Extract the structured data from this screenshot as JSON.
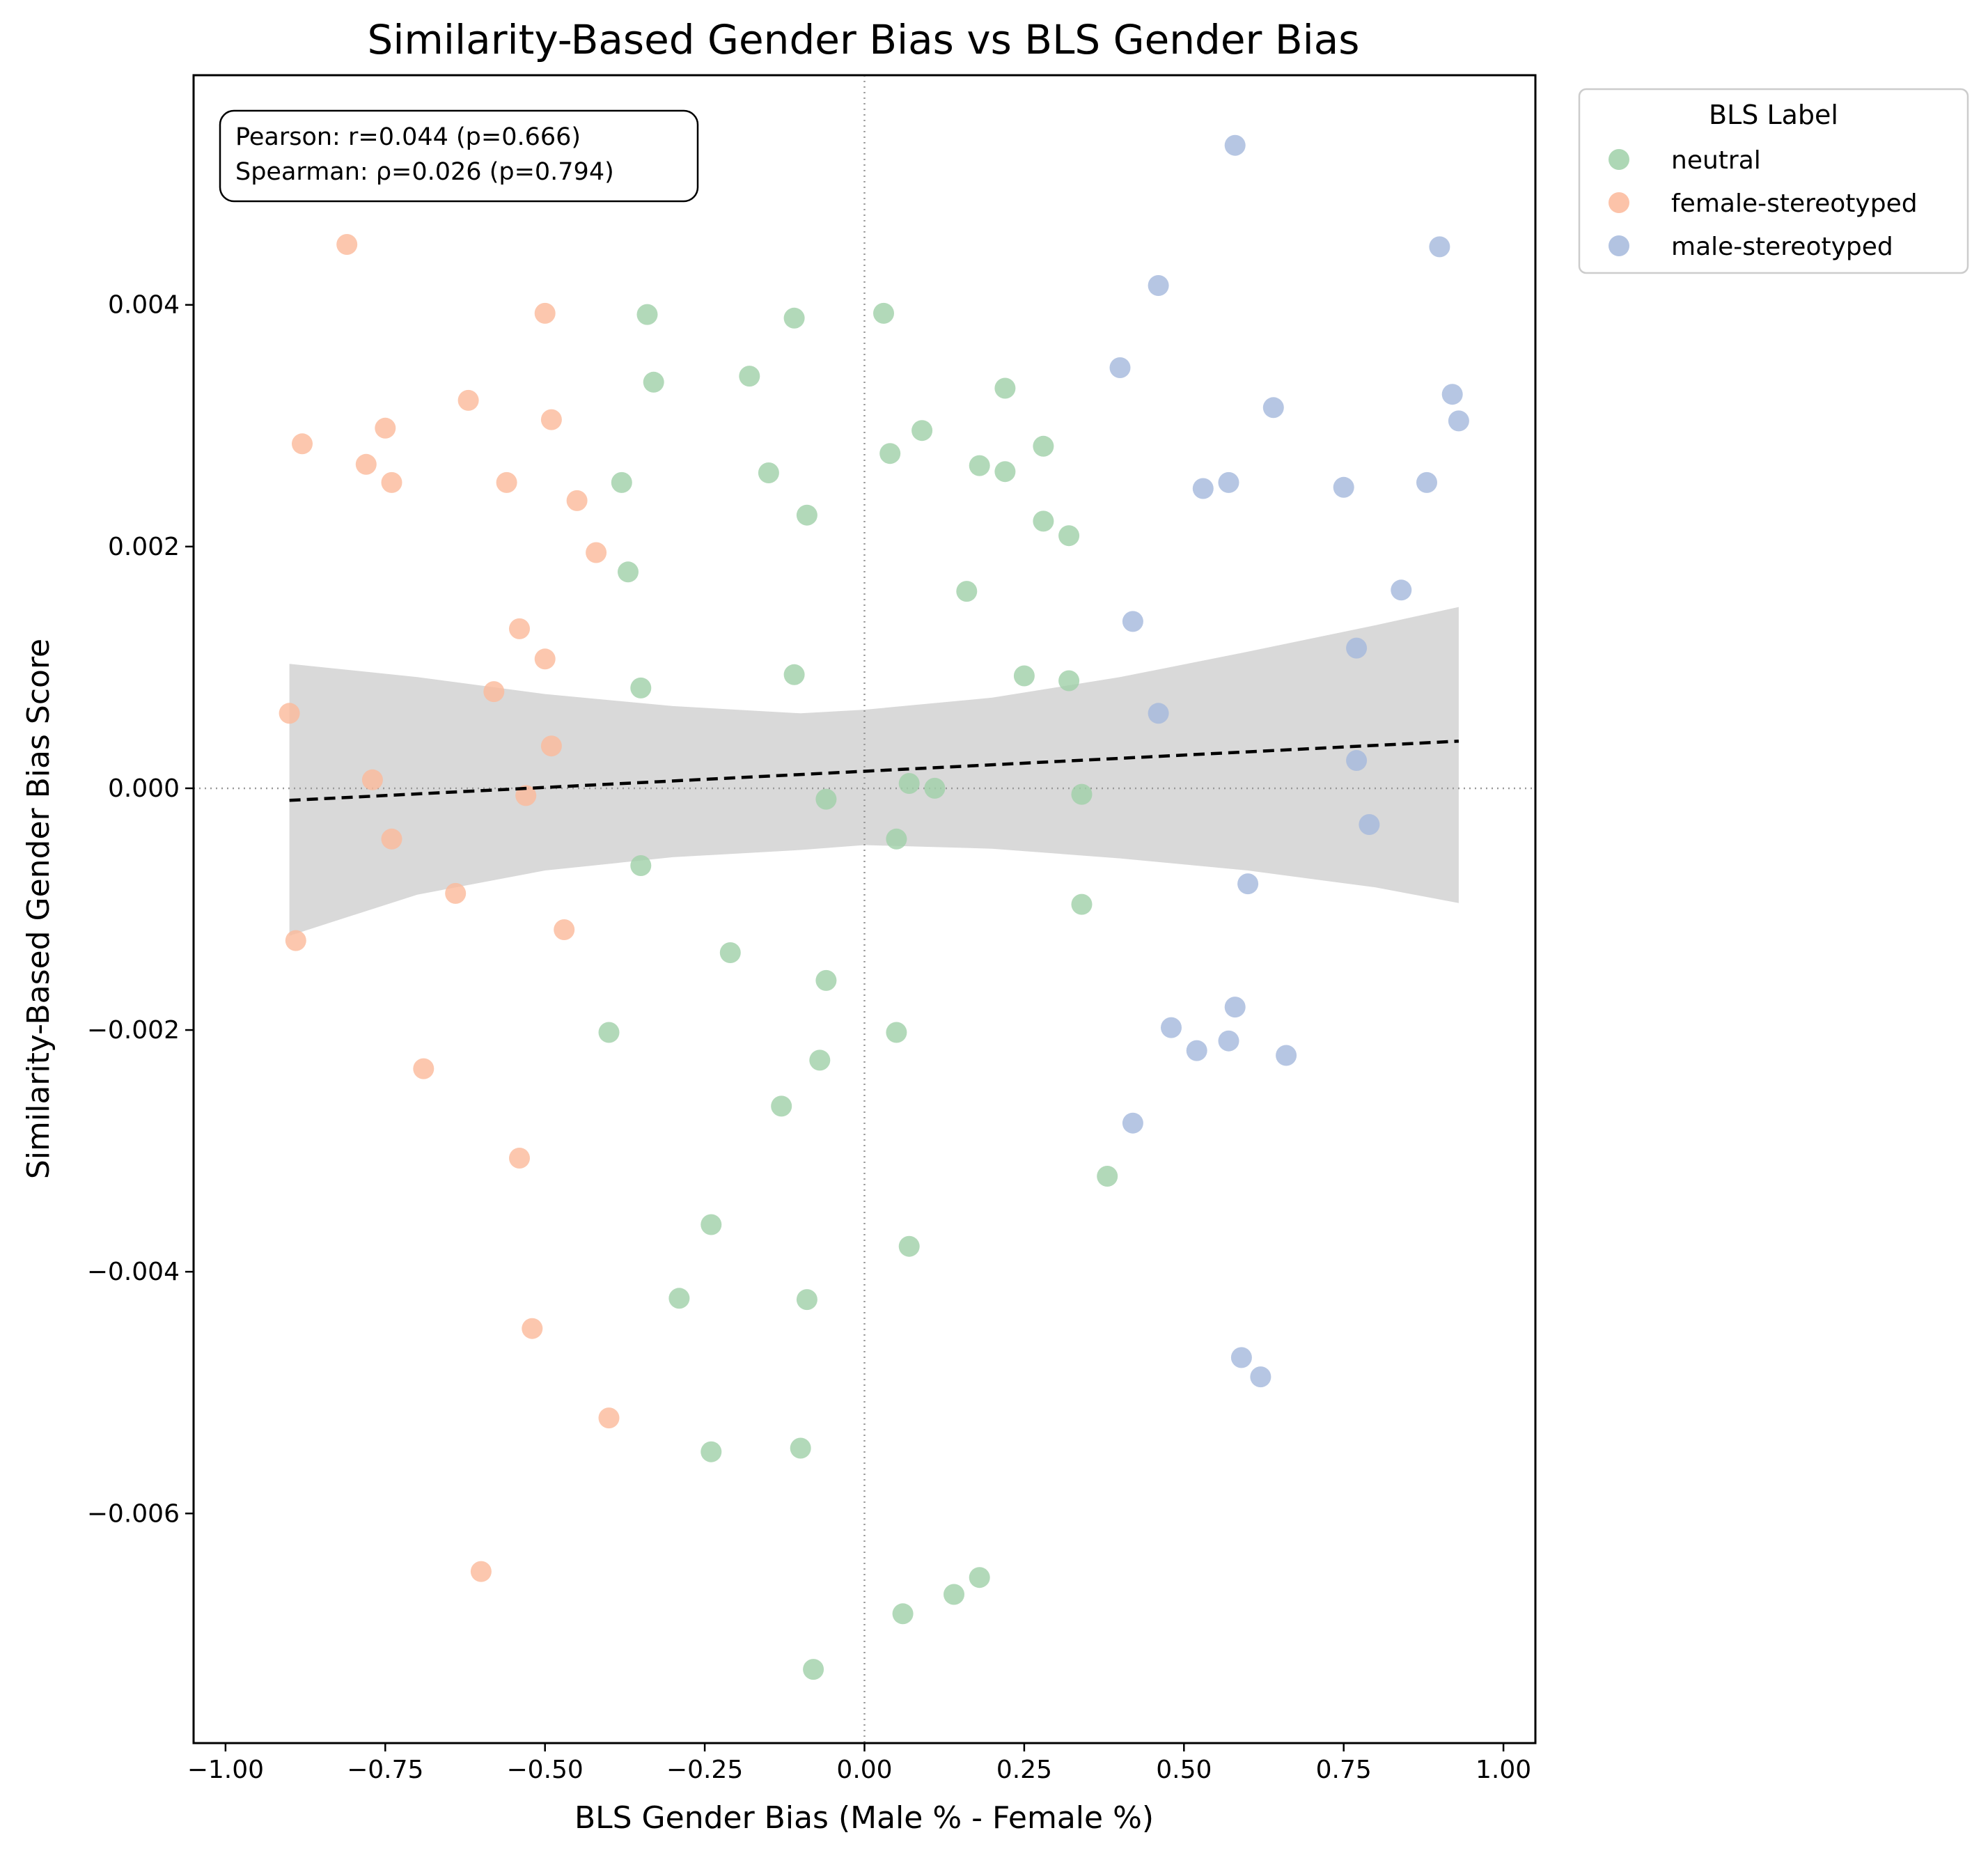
{
  "chart_data": {
    "type": "scatter",
    "title": "Similarity-Based Gender Bias vs BLS Gender Bias",
    "xlabel": "BLS Gender Bias (Male % - Female %)",
    "ylabel": "Similarity-Based Gender Bias Score",
    "xlim": [
      -1.05,
      1.05
    ],
    "ylim": [
      -0.0079,
      0.0059
    ],
    "xticks": [
      -1.0,
      -0.75,
      -0.5,
      -0.25,
      0.0,
      0.25,
      0.5,
      0.75,
      1.0
    ],
    "xtick_labels": [
      "−1.00",
      "−0.75",
      "−0.50",
      "−0.25",
      "0.00",
      "0.25",
      "0.50",
      "0.75",
      "1.00"
    ],
    "yticks": [
      -0.006,
      -0.004,
      -0.002,
      0.0,
      0.002,
      0.004
    ],
    "ytick_labels": [
      "−0.006",
      "−0.004",
      "−0.002",
      "0.000",
      "0.002",
      "0.004"
    ],
    "grid": false,
    "reference_lines": {
      "x": 0,
      "y": 0,
      "style": "dotted"
    },
    "annotation": [
      "Pearson: r=0.044 (p=0.666)",
      "Spearman: ρ=0.026 (p=0.794)"
    ],
    "legend": {
      "title": "BLS Label",
      "placement": "outside-top-right"
    },
    "regression": {
      "x_range": [
        -0.9,
        0.93
      ],
      "y_at_ends": [
        -0.0001,
        0.00039
      ],
      "ci_upper": [
        [
          -0.9,
          0.00103
        ],
        [
          -0.7,
          0.00092
        ],
        [
          -0.5,
          0.00078
        ],
        [
          -0.3,
          0.00068
        ],
        [
          -0.1,
          0.00062
        ],
        [
          0.0,
          0.00065
        ],
        [
          0.2,
          0.00075
        ],
        [
          0.4,
          0.00092
        ],
        [
          0.6,
          0.00113
        ],
        [
          0.8,
          0.00135
        ],
        [
          0.93,
          0.0015
        ]
      ],
      "ci_lower": [
        [
          -0.9,
          -0.00122
        ],
        [
          -0.7,
          -0.00088
        ],
        [
          -0.5,
          -0.00068
        ],
        [
          -0.3,
          -0.00057
        ],
        [
          -0.1,
          -0.00051
        ],
        [
          0.0,
          -0.00047
        ],
        [
          0.2,
          -0.0005
        ],
        [
          0.4,
          -0.00058
        ],
        [
          0.6,
          -0.00068
        ],
        [
          0.8,
          -0.00082
        ],
        [
          0.93,
          -0.00095
        ]
      ]
    },
    "series": [
      {
        "name": "neutral",
        "color": "#9fd0a8",
        "points": [
          [
            -0.34,
            0.00392
          ],
          [
            -0.11,
            0.00389
          ],
          [
            0.03,
            0.00393
          ],
          [
            -0.18,
            0.00341
          ],
          [
            -0.33,
            0.00336
          ],
          [
            0.22,
            0.00331
          ],
          [
            0.04,
            0.00277
          ],
          [
            0.09,
            0.00296
          ],
          [
            0.28,
            0.00283
          ],
          [
            -0.15,
            0.00261
          ],
          [
            0.18,
            0.00267
          ],
          [
            0.22,
            0.00262
          ],
          [
            -0.38,
            0.00253
          ],
          [
            -0.09,
            0.00226
          ],
          [
            0.28,
            0.00221
          ],
          [
            0.32,
            0.00209
          ],
          [
            -0.37,
            0.00179
          ],
          [
            0.16,
            0.00163
          ],
          [
            -0.11,
            0.00094
          ],
          [
            0.25,
            0.00093
          ],
          [
            0.32,
            0.00089
          ],
          [
            -0.35,
            0.00083
          ],
          [
            0.07,
            4e-05
          ],
          [
            0.11,
            0.0
          ],
          [
            -0.06,
            -9e-05
          ],
          [
            0.34,
            -5e-05
          ],
          [
            0.05,
            -0.00042
          ],
          [
            -0.35,
            -0.00064
          ],
          [
            0.34,
            -0.00096
          ],
          [
            -0.21,
            -0.00136
          ],
          [
            -0.06,
            -0.00159
          ],
          [
            -0.4,
            -0.00202
          ],
          [
            0.05,
            -0.00202
          ],
          [
            -0.07,
            -0.00225
          ],
          [
            -0.13,
            -0.00263
          ],
          [
            0.38,
            -0.00321
          ],
          [
            -0.24,
            -0.00361
          ],
          [
            0.07,
            -0.00379
          ],
          [
            -0.29,
            -0.00422
          ],
          [
            -0.09,
            -0.00423
          ],
          [
            -0.24,
            -0.00549
          ],
          [
            -0.1,
            -0.00546
          ],
          [
            0.18,
            -0.00653
          ],
          [
            0.14,
            -0.00667
          ],
          [
            0.06,
            -0.00683
          ],
          [
            -0.08,
            -0.00729
          ]
        ]
      },
      {
        "name": "female-stereotyped",
        "color": "#fbb99a",
        "points": [
          [
            -0.81,
            0.0045
          ],
          [
            -0.5,
            0.00393
          ],
          [
            -0.62,
            0.00321
          ],
          [
            -0.49,
            0.00305
          ],
          [
            -0.75,
            0.00298
          ],
          [
            -0.88,
            0.00285
          ],
          [
            -0.78,
            0.00268
          ],
          [
            -0.74,
            0.00253
          ],
          [
            -0.56,
            0.00253
          ],
          [
            -0.45,
            0.00238
          ],
          [
            -0.42,
            0.00195
          ],
          [
            -0.54,
            0.00132
          ],
          [
            -0.5,
            0.00107
          ],
          [
            -0.58,
            0.0008
          ],
          [
            -0.9,
            0.00062
          ],
          [
            -0.49,
            0.00035
          ],
          [
            -0.77,
            7e-05
          ],
          [
            -0.53,
            -6e-05
          ],
          [
            -0.74,
            -0.00042
          ],
          [
            -0.64,
            -0.00087
          ],
          [
            -0.47,
            -0.00117
          ],
          [
            -0.89,
            -0.00126
          ],
          [
            -0.69,
            -0.00232
          ],
          [
            -0.54,
            -0.00306
          ],
          [
            -0.52,
            -0.00447
          ],
          [
            -0.4,
            -0.00521
          ],
          [
            -0.6,
            -0.00648
          ]
        ]
      },
      {
        "name": "male-stereotyped",
        "color": "#a4b8dc",
        "points": [
          [
            0.58,
            0.00532
          ],
          [
            0.9,
            0.00448
          ],
          [
            0.46,
            0.00416
          ],
          [
            0.4,
            0.00348
          ],
          [
            0.92,
            0.00326
          ],
          [
            0.64,
            0.00315
          ],
          [
            0.93,
            0.00304
          ],
          [
            0.57,
            0.00253
          ],
          [
            0.88,
            0.00253
          ],
          [
            0.53,
            0.00248
          ],
          [
            0.75,
            0.00249
          ],
          [
            0.84,
            0.00164
          ],
          [
            0.42,
            0.00138
          ],
          [
            0.77,
            0.00116
          ],
          [
            0.46,
            0.00062
          ],
          [
            0.77,
            0.00023
          ],
          [
            0.79,
            -0.0003
          ],
          [
            0.6,
            -0.00079
          ],
          [
            0.58,
            -0.00181
          ],
          [
            0.48,
            -0.00198
          ],
          [
            0.57,
            -0.00209
          ],
          [
            0.52,
            -0.00217
          ],
          [
            0.66,
            -0.00221
          ],
          [
            0.42,
            -0.00277
          ],
          [
            0.59,
            -0.00471
          ],
          [
            0.62,
            -0.00487
          ]
        ]
      }
    ]
  }
}
